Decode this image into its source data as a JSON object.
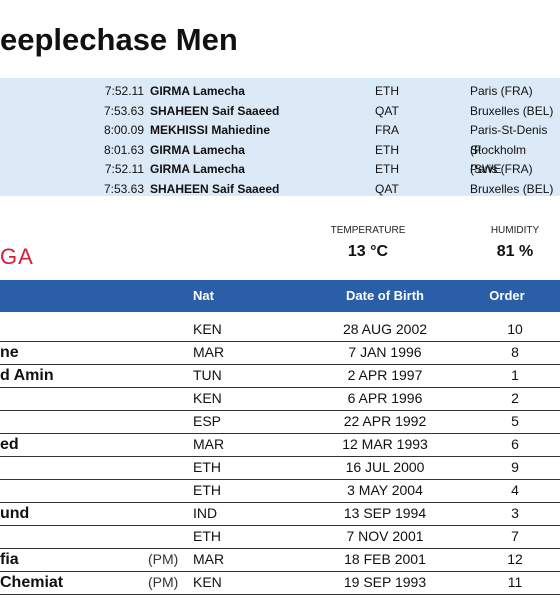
{
  "header": {
    "title": "eeplechase Men"
  },
  "records": [
    [
      "7:52.11",
      "GIRMA Lamecha",
      "ETH",
      "Paris (FRA)"
    ],
    [
      "7:53.63",
      "SHAHEEN Saif Saaeed",
      "QAT",
      "Bruxelles (BEL)"
    ],
    [
      "8:00.09",
      "MEKHISSI Mahiedine",
      "FRA",
      "Paris-St-Denis (F"
    ],
    [
      "8:01.63",
      "GIRMA Lamecha",
      "ETH",
      "Stockholm (SWE"
    ],
    [
      "7:52.11",
      "GIRMA Lamecha",
      "ETH",
      "Paris (FRA)"
    ],
    [
      "7:53.63",
      "SHAHEEN Saif Saaeed",
      "QAT",
      "Bruxelles (BEL)"
    ]
  ],
  "logo": "GA",
  "weather": {
    "temperature_label": "TEMPERATURE",
    "temperature": "13 °C",
    "humidity_label": "HUMIDITY",
    "humidity": "81 %"
  },
  "table": {
    "columns": [
      "Nat",
      "Date of Birth",
      "Order"
    ],
    "rows": [
      [
        null,
        null,
        "KEN",
        "28 AUG 2002",
        "10"
      ],
      [
        "ne",
        null,
        "MAR",
        "7 JAN 1996",
        "8"
      ],
      [
        "d Amin",
        null,
        "TUN",
        "2 APR 1997",
        "1"
      ],
      [
        null,
        null,
        "KEN",
        "6 APR 1996",
        "2"
      ],
      [
        null,
        null,
        "ESP",
        "22 APR 1992",
        "5"
      ],
      [
        "ed",
        null,
        "MAR",
        "12 MAR 1993",
        "6"
      ],
      [
        null,
        null,
        "ETH",
        "16 JUL 2000",
        "9"
      ],
      [
        null,
        null,
        "ETH",
        "3 MAY 2004",
        "4"
      ],
      [
        "und",
        null,
        "IND",
        "13 SEP 1994",
        "3"
      ],
      [
        null,
        null,
        "ETH",
        "7 NOV 2001",
        "7"
      ],
      [
        "fia",
        "(PM)",
        "MAR",
        "18 FEB 2001",
        "12"
      ],
      [
        " Chemiat",
        "(PM)",
        "KEN",
        "19 SEP 1993",
        "11"
      ]
    ]
  }
}
